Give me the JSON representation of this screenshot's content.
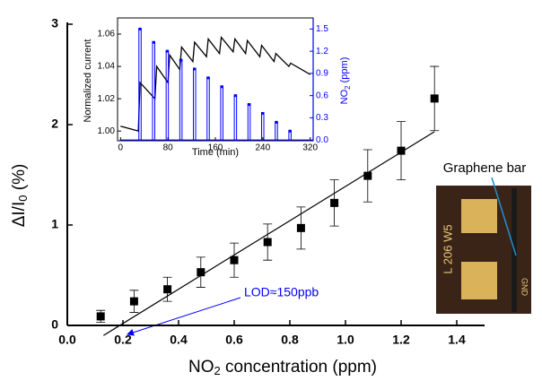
{
  "chart_data": [
    {
      "type": "scatter",
      "xlabel": [
        "NO",
        "2",
        " concentration (ppm)"
      ],
      "ylabel": [
        "ΔI/I",
        "0",
        " (%)"
      ],
      "x": [
        0.12,
        0.24,
        0.36,
        0.48,
        0.6,
        0.72,
        0.84,
        0.96,
        1.08,
        1.2,
        1.32
      ],
      "values": [
        0.09,
        0.24,
        0.36,
        0.53,
        0.65,
        0.83,
        0.97,
        1.22,
        1.49,
        1.74,
        2.26
      ],
      "errors": [
        0.06,
        0.11,
        0.12,
        0.15,
        0.17,
        0.18,
        0.21,
        0.23,
        0.26,
        0.29,
        0.32
      ],
      "color": "#000000",
      "fit_line": {
        "x": [
          0.13,
          1.32
        ],
        "values": [
          -0.1,
          1.93
        ]
      },
      "xlim": [
        0,
        1.5
      ],
      "ylim": [
        0,
        3
      ],
      "xticks": [
        {
          "value": 0,
          "label": "0.0"
        },
        {
          "value": 0.2,
          "label": "0.2"
        },
        {
          "value": 0.4,
          "label": "0.4"
        },
        {
          "value": 0.6,
          "label": "0.6"
        },
        {
          "value": 0.8,
          "label": "0.8"
        },
        {
          "value": 1,
          "label": "1.0"
        },
        {
          "value": 1.2,
          "label": "1.2"
        },
        {
          "value": 1.4,
          "label": "1.4"
        }
      ],
      "yticks": [
        0,
        1,
        2,
        3
      ],
      "annotation": "LOD≈150ppb",
      "photo_label": "Graphene bar",
      "photo_texts": [
        "L 206 W5",
        "GND"
      ]
    },
    {
      "type": "line",
      "xlabel": "Time (min)",
      "ylabel": "Normalized current",
      "y2label": [
        "NO",
        "2",
        " (ppm)"
      ],
      "series": [
        {
          "color": "#000000",
          "x": [
            0,
            30,
            33,
            58,
            61,
            80,
            83,
            100,
            103,
            122,
            125,
            145,
            148,
            167,
            170,
            190,
            193,
            211,
            214,
            235,
            238,
            259,
            262,
            284,
            287,
            320
          ],
          "values": [
            1.003,
            1.0,
            1.03,
            1.02,
            1.04,
            1.03,
            1.047,
            1.038,
            1.052,
            1.043,
            1.055,
            1.046,
            1.057,
            1.048,
            1.058,
            1.049,
            1.057,
            1.048,
            1.056,
            1.046,
            1.053,
            1.043,
            1.048,
            1.04,
            1.042,
            1.035
          ]
        },
        {
          "color": "#0000ff",
          "axis": "y2",
          "style": "pulse",
          "x": [
            31,
            54,
            77,
            100,
            123,
            146,
            169,
            192,
            215,
            238,
            261,
            284
          ],
          "values": [
            1.5,
            1.32,
            1.2,
            1.08,
            0.96,
            0.84,
            0.72,
            0.6,
            0.48,
            0.36,
            0.24,
            0.12
          ]
        }
      ],
      "xlim": [
        -5,
        325
      ],
      "ylim": [
        0.994,
        1.07
      ],
      "y2lim": [
        -0.01,
        1.65
      ],
      "xticks": [
        0,
        80,
        160,
        240,
        320
      ],
      "yticks": [
        {
          "value": 1,
          "label": "1.00"
        },
        {
          "value": 1.02,
          "label": "1.02"
        },
        {
          "value": 1.04,
          "label": "1.04"
        },
        {
          "value": 1.06,
          "label": "1.06"
        }
      ],
      "y2ticks": [
        {
          "value": 0,
          "label": "0.0"
        },
        {
          "value": 0.3,
          "label": "0.3"
        },
        {
          "value": 0.6,
          "label": "0.6"
        },
        {
          "value": 0.9,
          "label": "0.9"
        },
        {
          "value": 1.2,
          "label": "1.2"
        },
        {
          "value": 1.5,
          "label": "1.5"
        }
      ]
    }
  ]
}
